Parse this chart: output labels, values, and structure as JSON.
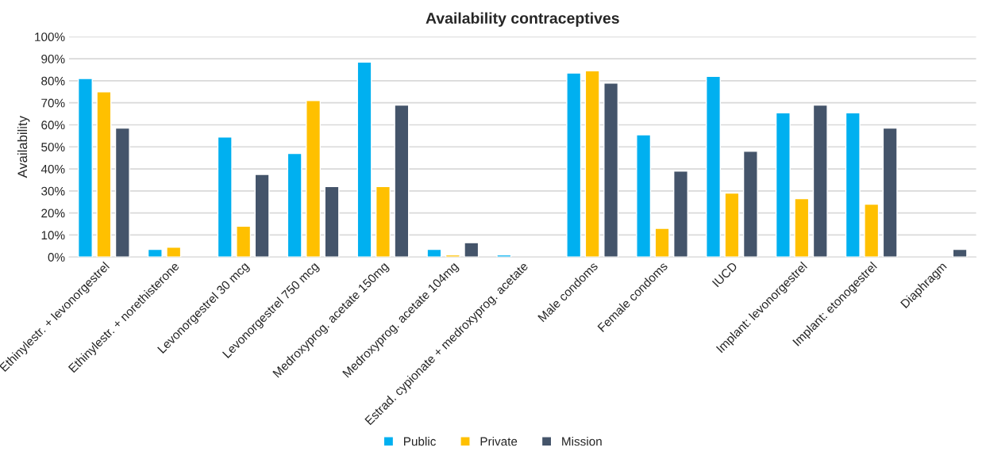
{
  "chart_data": {
    "type": "bar",
    "title": "Availability contraceptives",
    "ylabel": "Availability",
    "categories": [
      "Ethinylestr. + levonorgestrel",
      "Ethinylestr. + norethisterone",
      "Levonorgestrel 30 mcg",
      "Levonorgestrel 750 mcg",
      "Medroxyprog. acetate 150mg",
      "Medroxyprog. acetate 104mg",
      "Estrad. cypionate + medroxyprog. acetate",
      "Male condoms",
      "Female condoms",
      "IUCD",
      "Implant: levonorgestrel",
      "Implant: etonogestrel",
      "Diaphragm"
    ],
    "series": [
      {
        "name": "Public",
        "color": "#00b0f0",
        "values": [
          81,
          3.5,
          54.5,
          47,
          88.5,
          3.5,
          1,
          83.5,
          55.5,
          82,
          65.5,
          65.5,
          null
        ]
      },
      {
        "name": "Private",
        "color": "#ffc000",
        "values": [
          75,
          4.5,
          14,
          71,
          32,
          1,
          null,
          84.5,
          13,
          29,
          26.5,
          24,
          null
        ]
      },
      {
        "name": "Mission",
        "color": "#44546a",
        "values": [
          58.5,
          null,
          37.5,
          32,
          69,
          6.5,
          null,
          79,
          39,
          48,
          69,
          58.5,
          3.5
        ]
      }
    ],
    "ylim": [
      0,
      100
    ],
    "yticks": [
      {
        "value": 0,
        "label": "0%"
      },
      {
        "value": 10,
        "label": "10%"
      },
      {
        "value": 20,
        "label": "20%"
      },
      {
        "value": 30,
        "label": "30%"
      },
      {
        "value": 40,
        "label": "40%"
      },
      {
        "value": 50,
        "label": "50%"
      },
      {
        "value": 60,
        "label": "60%"
      },
      {
        "value": 70,
        "label": "70%"
      },
      {
        "value": 80,
        "label": "80%"
      },
      {
        "value": 90,
        "label": "90%"
      },
      {
        "value": 100,
        "label": "100%"
      }
    ],
    "grid": "y",
    "legend": "bottom"
  }
}
